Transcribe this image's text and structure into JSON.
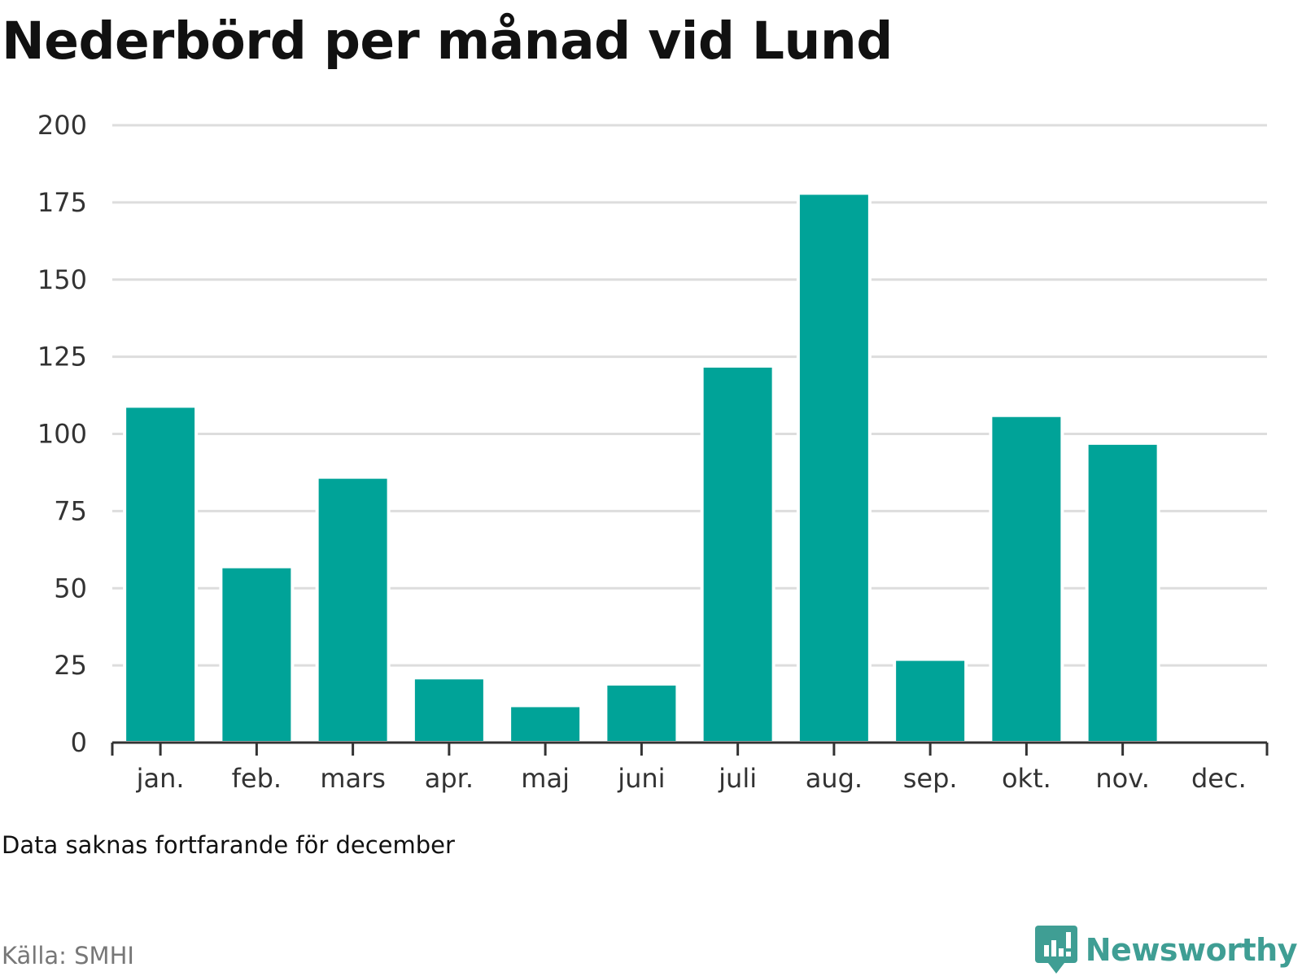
{
  "chart_data": {
    "type": "bar",
    "title": "Nederbörd per månad vid Lund",
    "categories": [
      "jan.",
      "feb.",
      "mars",
      "apr.",
      "maj",
      "juni",
      "juli",
      "aug.",
      "sep.",
      "okt.",
      "nov.",
      "dec."
    ],
    "values": [
      109,
      57,
      86,
      21,
      12,
      19,
      122,
      178,
      27,
      106,
      97,
      null
    ],
    "yticks": [
      0,
      25,
      50,
      75,
      100,
      125,
      150,
      175,
      200
    ],
    "ylim": [
      0,
      200
    ],
    "grid": true,
    "bar_color": "#00a398",
    "grid_color": "#dddddd",
    "axis_color": "#333333",
    "note": "Data saknas fortfarande för december",
    "source": "Källa: SMHI"
  },
  "brand": {
    "name": "Newsworthy",
    "icon": "newsworthy-logo-icon",
    "color": "#3f9e94"
  }
}
